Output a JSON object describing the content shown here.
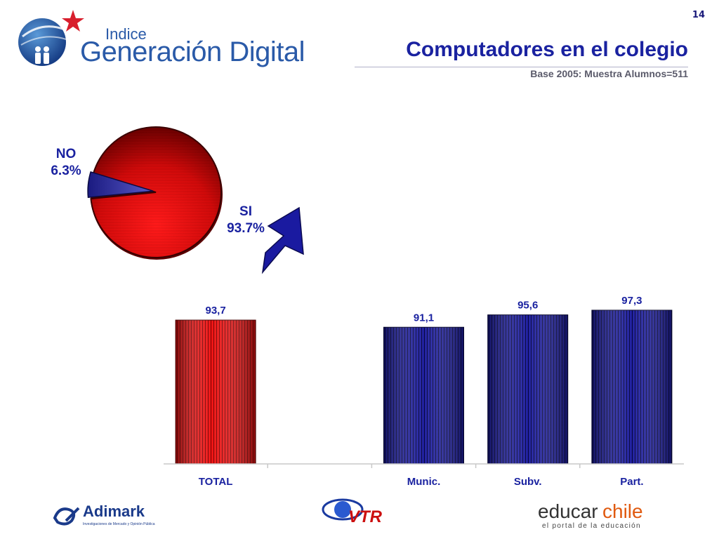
{
  "page_number": "14",
  "brand": {
    "line1": "Indice",
    "line2": "Generación Digital"
  },
  "header": {
    "title": "Computadores en el colegio",
    "subtitle": "Base 2005: Muestra Alumnos=511"
  },
  "chart_data": [
    {
      "type": "pie",
      "slices": [
        {
          "label": "NO",
          "value": 6.3,
          "value_label": "6.3%",
          "color": "#2a2a9a"
        },
        {
          "label": "SI",
          "value": 93.7,
          "value_label": "93.7%",
          "color": "#e01010"
        }
      ]
    },
    {
      "type": "bar",
      "categories": [
        "TOTAL",
        "",
        "Munic.",
        "Subv.",
        "Part."
      ],
      "values": [
        93.7,
        null,
        91.1,
        95.6,
        97.3
      ],
      "value_labels": [
        "93,7",
        "",
        "91,1",
        "95,6",
        "97,3"
      ],
      "colors": [
        "#e01010",
        null,
        "#1a1a8a",
        "#1a1a8a",
        "#1a1a8a"
      ],
      "ylim": [
        0,
        100
      ],
      "grid": false
    }
  ],
  "footer": {
    "adimark": {
      "name": "Adimark",
      "tagline": "Investigaciones de Mercado y Opinión Pública"
    },
    "vtr": "VTR",
    "educarchile": {
      "part1": "educar",
      "part2": "chile",
      "tagline": "el portal de la educación"
    }
  },
  "colors": {
    "title_blue": "#1a22a0",
    "brand_blue": "#2a5aa8",
    "red": "#e01010",
    "navy": "#1a1a8a"
  }
}
